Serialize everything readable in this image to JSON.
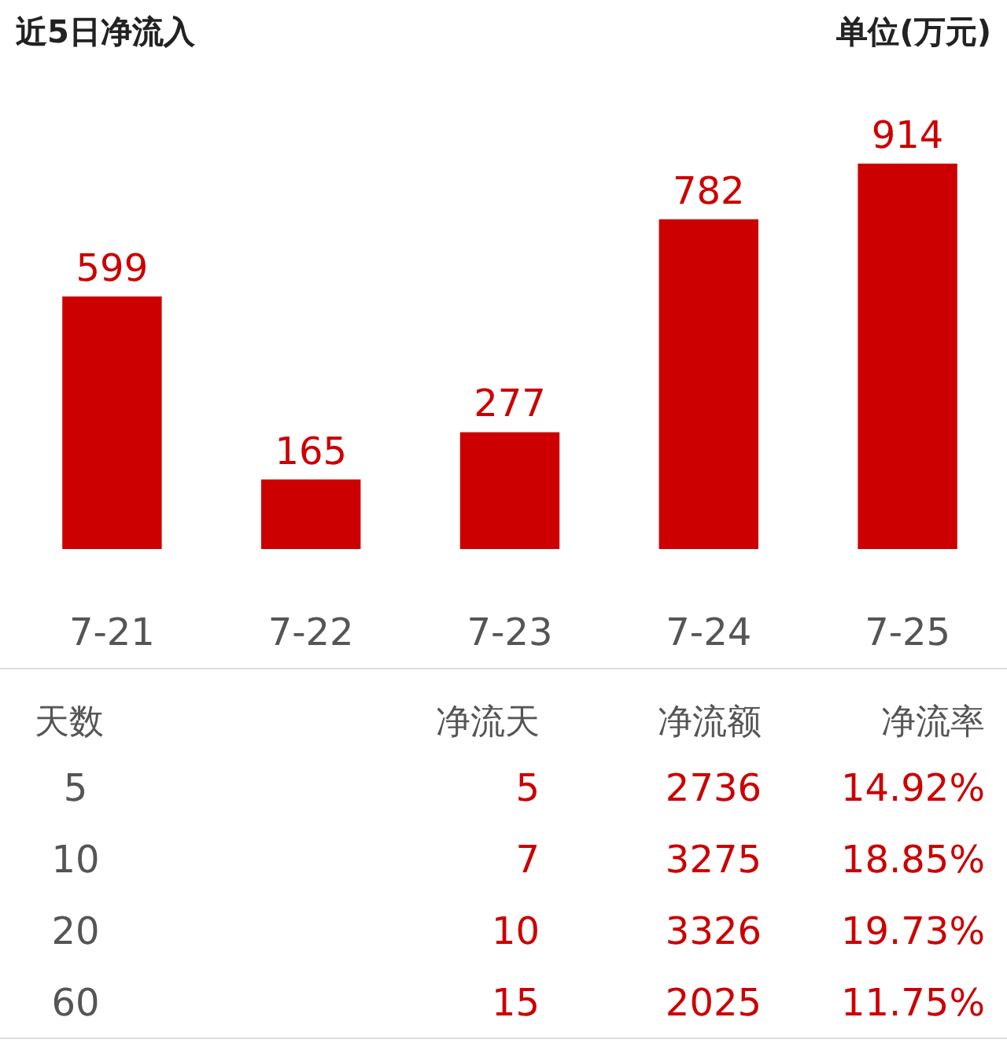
{
  "chart_data": [
    {
      "type": "bar",
      "title": "近5日净流入",
      "subtitle": "单位(万元)",
      "categories": [
        "7-21",
        "7-22",
        "7-23",
        "7-24",
        "7-25"
      ],
      "values": [
        599,
        165,
        277,
        782,
        914
      ],
      "color": "#cc0000",
      "data_labels": true
    },
    {
      "type": "other",
      "categories": [
        "天数",
        "净流天",
        "净流额",
        "净流率"
      ],
      "annotations": [
        "5",
        "5",
        "2736",
        "14.92%",
        "10",
        "7",
        "3275",
        "18.85%",
        "20",
        "10",
        "3326",
        "19.73%",
        "60",
        "15",
        "2025",
        "11.75%"
      ]
    }
  ]
}
